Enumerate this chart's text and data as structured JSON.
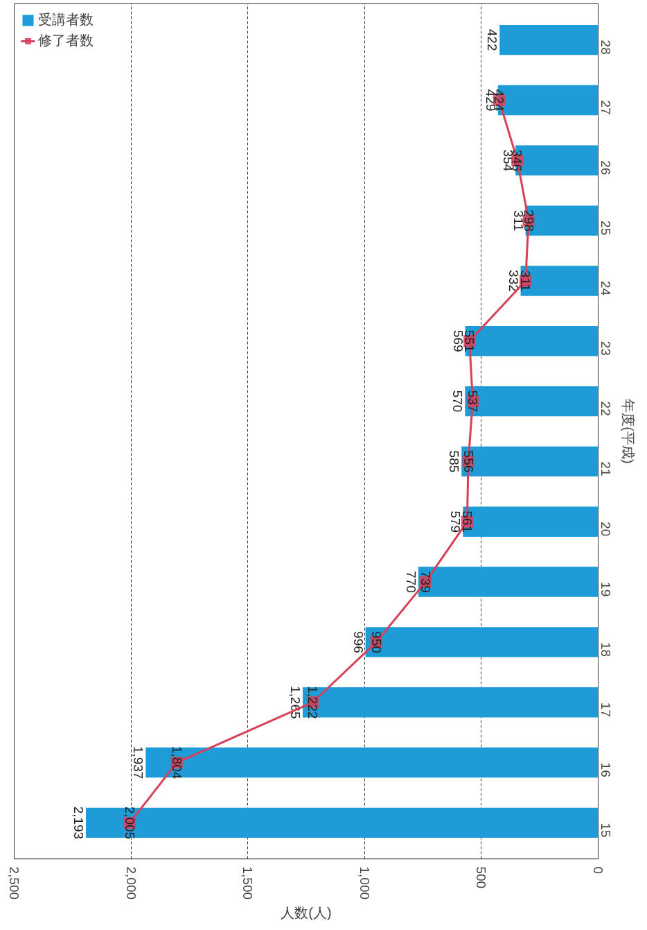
{
  "chart_data": {
    "type": "bar",
    "orientation": "horizontal",
    "xlabel": "人数(人)",
    "ylabel": "年度(平成)",
    "categories": [
      "28",
      "27",
      "26",
      "25",
      "24",
      "23",
      "22",
      "21",
      "20",
      "19",
      "18",
      "17",
      "16",
      "15"
    ],
    "series": [
      {
        "name": "受講者数",
        "color": "#1e9cd7",
        "values": [
          422,
          429,
          354,
          311,
          332,
          569,
          570,
          585,
          579,
          770,
          996,
          1265,
          1937,
          2193
        ],
        "value_labels": [
          "422",
          "429",
          "354",
          "311",
          "332",
          "569",
          "570",
          "585",
          "579",
          "770",
          "996",
          "1,265",
          "1,937",
          "2,193"
        ]
      },
      {
        "name": "修了者数",
        "type": "line",
        "color": "#d8405a",
        "marker": "square",
        "values": [
          null,
          424,
          346,
          298,
          311,
          551,
          537,
          556,
          561,
          739,
          950,
          1222,
          1804,
          2005
        ],
        "value_labels": [
          null,
          "424",
          "346",
          "298",
          "311",
          "551",
          "537",
          "556",
          "561",
          "739",
          "950",
          "1,222",
          "1,804",
          "2,005"
        ]
      }
    ],
    "xlim": [
      2500,
      0
    ],
    "xticks": [
      {
        "value": 2500,
        "label": "2,500"
      },
      {
        "value": 2000,
        "label": "2,000"
      },
      {
        "value": 1500,
        "label": "1,500"
      },
      {
        "value": 1000,
        "label": "1,000"
      },
      500,
      0
    ],
    "grid": "x",
    "legend": "top left"
  }
}
